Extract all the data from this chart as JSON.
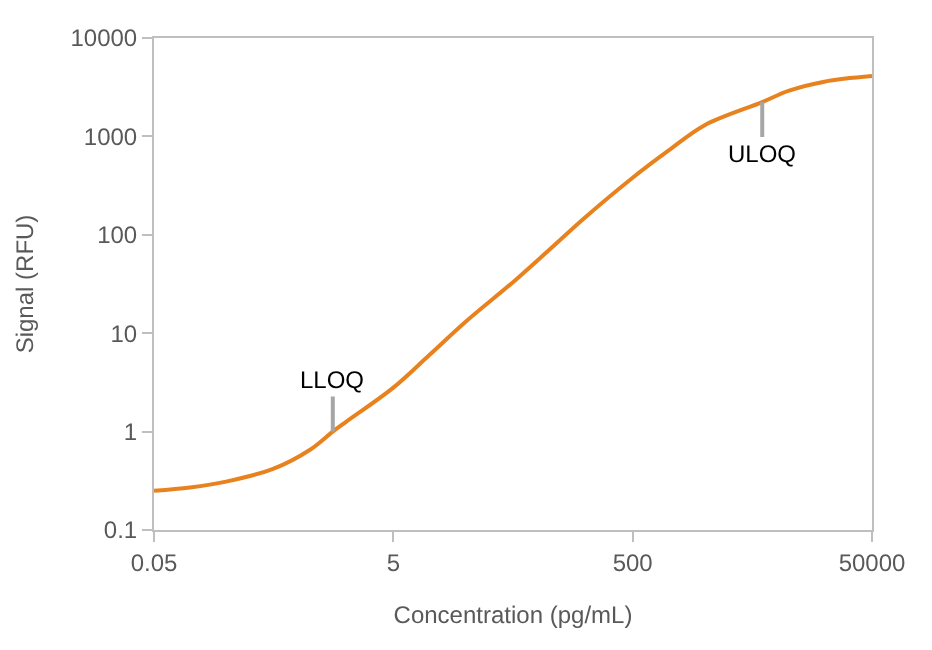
{
  "chart_data": {
    "type": "line",
    "xlabel": "Concentration (pg/mL)",
    "ylabel": "Signal (RFU)",
    "log": "xy",
    "marker": "none",
    "line_style": "solid",
    "xlim": [
      0.05,
      50000
    ],
    "xticks": [
      0.05,
      5,
      500,
      50000
    ],
    "ylim": [
      0.1,
      10000
    ],
    "yticks": [
      0.1,
      1,
      10,
      100,
      1000,
      10000
    ],
    "x": [
      0.05,
      0.1,
      0.2,
      0.5,
      1,
      1.56,
      2,
      5,
      10,
      20,
      50,
      100,
      200,
      500,
      1000,
      2000,
      6050,
      10000,
      20000,
      50000
    ],
    "series": [
      {
        "color": "#e8821e",
        "values": [
          0.25,
          0.27,
          0.31,
          0.42,
          0.65,
          1.0,
          1.25,
          2.8,
          6,
          13,
          33,
          70,
          150,
          380,
          720,
          1300,
          2230,
          2900,
          3600,
          4100
        ]
      }
    ],
    "annotations": [
      {
        "text": "LLOQ",
        "x": 1.56,
        "y": 1.0
      },
      {
        "text": "ULOQ",
        "x": 6050,
        "y": 2230
      }
    ]
  }
}
